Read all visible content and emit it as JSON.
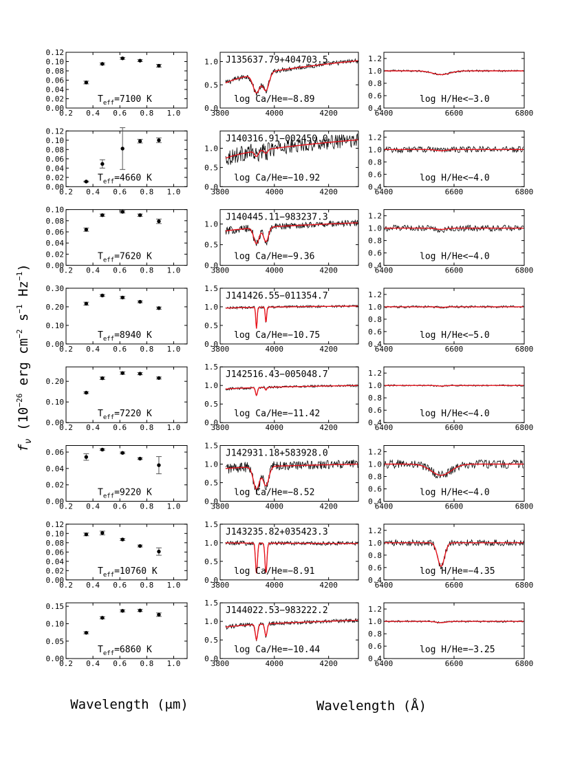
{
  "figure": {
    "ylabel_parts": {
      "f": "f",
      "nu": "ν",
      "open": " (10",
      "e1": "−26",
      "erg": " erg cm",
      "e2": "−2",
      "s": " s",
      "e3": "−1",
      "hz": " Hz",
      "e4": "−1",
      "close": ")"
    },
    "xlabel_photometry": "Wavelength (μm)",
    "xlabel_spectra": "Wavelength (Å)"
  },
  "colors": {
    "model": "#e8131c",
    "data": "#000000",
    "axes": "#000000"
  },
  "chart_data": [
    {
      "type": "scatter",
      "panel": "photometry",
      "xlim": [
        0.2,
        1.1
      ],
      "xticks": [
        "0.2",
        "0.4",
        "0.6",
        "0.8",
        "1.0"
      ],
      "series": [
        {
          "name": "T_eff=7100 K"
        }
      ],
      "annotation": "T_eff=7100 K",
      "rows": [
        {
          "teff_label": "7100 K",
          "ylim": [
            0,
            0.12
          ],
          "yticks": [
            "0.00",
            "0.02",
            "0.04",
            "0.06",
            "0.08",
            "0.10",
            "0.12"
          ],
          "points": [
            {
              "x": 0.35,
              "y": 0.055,
              "err": 0.003
            },
            {
              "x": 0.47,
              "y": 0.095,
              "err": 0.002
            },
            {
              "x": 0.62,
              "y": 0.107,
              "err": 0.002
            },
            {
              "x": 0.75,
              "y": 0.102,
              "err": 0.002
            },
            {
              "x": 0.89,
              "y": 0.091,
              "err": 0.003
            }
          ]
        },
        {
          "teff_label": "4660 K",
          "ylim": [
            0,
            0.12
          ],
          "yticks": [
            "0.00",
            "0.02",
            "0.04",
            "0.06",
            "0.08",
            "0.10",
            "0.12"
          ],
          "points": [
            {
              "x": 0.35,
              "y": 0.011,
              "err": 0.001
            },
            {
              "x": 0.47,
              "y": 0.049,
              "err": 0.009
            },
            {
              "x": 0.62,
              "y": 0.082,
              "err": 0.045
            },
            {
              "x": 0.75,
              "y": 0.098,
              "err": 0.004
            },
            {
              "x": 0.89,
              "y": 0.1,
              "err": 0.005
            }
          ]
        },
        {
          "teff_label": "7620 K",
          "ylim": [
            0,
            0.1
          ],
          "yticks": [
            "0.00",
            "0.02",
            "0.04",
            "0.06",
            "0.08",
            "0.10"
          ],
          "points": [
            {
              "x": 0.35,
              "y": 0.064,
              "err": 0.003
            },
            {
              "x": 0.47,
              "y": 0.09,
              "err": 0.002
            },
            {
              "x": 0.62,
              "y": 0.096,
              "err": 0.002
            },
            {
              "x": 0.75,
              "y": 0.09,
              "err": 0.002
            },
            {
              "x": 0.89,
              "y": 0.079,
              "err": 0.004
            }
          ]
        },
        {
          "teff_label": "8940 K",
          "ylim": [
            0,
            0.3
          ],
          "yticks": [
            "0.00",
            "0.10",
            "0.20",
            "0.30"
          ],
          "points": [
            {
              "x": 0.35,
              "y": 0.217,
              "err": 0.008
            },
            {
              "x": 0.47,
              "y": 0.261,
              "err": 0.005
            },
            {
              "x": 0.62,
              "y": 0.25,
              "err": 0.006
            },
            {
              "x": 0.75,
              "y": 0.227,
              "err": 0.005
            },
            {
              "x": 0.89,
              "y": 0.193,
              "err": 0.006
            }
          ]
        },
        {
          "teff_label": "7220 K",
          "ylim": [
            0,
            0.27
          ],
          "yticks": [
            "0.00",
            "0.10",
            "0.20"
          ],
          "points": [
            {
              "x": 0.35,
              "y": 0.145,
              "err": 0.004
            },
            {
              "x": 0.47,
              "y": 0.215,
              "err": 0.006
            },
            {
              "x": 0.62,
              "y": 0.24,
              "err": 0.006
            },
            {
              "x": 0.75,
              "y": 0.237,
              "err": 0.005
            },
            {
              "x": 0.89,
              "y": 0.216,
              "err": 0.005
            }
          ]
        },
        {
          "teff_label": "9220 K",
          "ylim": [
            0,
            0.068
          ],
          "yticks": [
            "0.00",
            "0.02",
            "0.04",
            "0.06"
          ],
          "points": [
            {
              "x": 0.35,
              "y": 0.054,
              "err": 0.004
            },
            {
              "x": 0.47,
              "y": 0.063,
              "err": 0.001
            },
            {
              "x": 0.62,
              "y": 0.059,
              "err": 0.001
            },
            {
              "x": 0.75,
              "y": 0.052,
              "err": 0.001
            },
            {
              "x": 0.89,
              "y": 0.044,
              "err": 0.0105
            }
          ]
        },
        {
          "teff_label": "10760 K",
          "ylim": [
            0,
            0.12
          ],
          "yticks": [
            "0.00",
            "0.02",
            "0.04",
            "0.06",
            "0.08",
            "0.10",
            "0.12"
          ],
          "points": [
            {
              "x": 0.35,
              "y": 0.098,
              "err": 0.003
            },
            {
              "x": 0.47,
              "y": 0.101,
              "err": 0.004
            },
            {
              "x": 0.62,
              "y": 0.087,
              "err": 0.002
            },
            {
              "x": 0.75,
              "y": 0.073,
              "err": 0.002
            },
            {
              "x": 0.89,
              "y": 0.061,
              "err": 0.008
            }
          ]
        },
        {
          "teff_label": "6860 K",
          "ylim": [
            0,
            0.16
          ],
          "yticks": [
            "0.00",
            "0.05",
            "0.10",
            "0.15"
          ],
          "points": [
            {
              "x": 0.35,
              "y": 0.074,
              "err": 0.003
            },
            {
              "x": 0.47,
              "y": 0.117,
              "err": 0.003
            },
            {
              "x": 0.62,
              "y": 0.137,
              "err": 0.003
            },
            {
              "x": 0.75,
              "y": 0.138,
              "err": 0.003
            },
            {
              "x": 0.89,
              "y": 0.126,
              "err": 0.005
            }
          ]
        }
      ]
    },
    {
      "type": "line",
      "panel": "CaHK",
      "xlim": [
        3800,
        4310
      ],
      "xticks": [
        "3800",
        "4000",
        "4200"
      ],
      "rows": [
        {
          "name": "J135637.79+404703.5",
          "abund": "log Ca/He=−8.89",
          "ylim": [
            0,
            1.2
          ],
          "yticks": [
            "0.0",
            "0.5",
            "1.0"
          ],
          "depthK": 0.55,
          "depthH": 0.5,
          "widthK": 18,
          "widthH": 16,
          "noise": 0.05,
          "start": 0.42,
          "end": 1.02
        },
        {
          "name": "J140316.91−002450.0",
          "abund": "log Ca/He=−10.92",
          "ylim": [
            0,
            1.45
          ],
          "yticks": [
            "0.0",
            "0.5",
            "1.0"
          ],
          "depthK": 0.15,
          "depthH": 0.1,
          "widthK": 10,
          "widthH": 9,
          "noise": 0.18,
          "start": 0.62,
          "end": 1.22
        },
        {
          "name": "J140445.11−983237.3",
          "abund": "log Ca/He=−9.36",
          "ylim": [
            0,
            1.35
          ],
          "yticks": [
            "0.0",
            "0.5",
            "1.0"
          ],
          "depthK": 0.42,
          "depthH": 0.38,
          "widthK": 14,
          "widthH": 13,
          "noise": 0.08,
          "start": 0.78,
          "end": 1.03
        },
        {
          "name": "J141426.55−011354.7",
          "abund": "log Ca/He=−10.75",
          "ylim": [
            0,
            1.5
          ],
          "yticks": [
            "0.0",
            "0.5",
            "1.0",
            "1.5"
          ],
          "depthK": 0.58,
          "depthH": 0.42,
          "widthK": 3.5,
          "widthH": 3.5,
          "noise": 0.03,
          "start": 0.95,
          "end": 1.02
        },
        {
          "name": "J142516.43−005048.7",
          "abund": "log Ca/He=−11.42",
          "ylim": [
            0,
            1.5
          ],
          "yticks": [
            "0.0",
            "0.5",
            "1.0",
            "1.5"
          ],
          "depthK": 0.22,
          "depthH": 0.08,
          "widthK": 5,
          "widthH": 4,
          "noise": 0.03,
          "start": 0.88,
          "end": 1.0
        },
        {
          "name": "J142931.18+583928.0",
          "abund": "log Ca/He=−8.52",
          "ylim": [
            0,
            1.5
          ],
          "yticks": [
            "0.0",
            "0.5",
            "1.0",
            "1.5"
          ],
          "depthK": 0.65,
          "depthH": 0.55,
          "widthK": 16,
          "widthH": 15,
          "noise": 0.12,
          "start": 0.85,
          "end": 1.0
        },
        {
          "name": "J143235.82+035423.3",
          "abund": "log Ca/He=−8.91",
          "ylim": [
            0,
            1.5
          ],
          "yticks": [
            "0.0",
            "0.5",
            "1.0",
            "1.5"
          ],
          "depthK": 0.82,
          "depthH": 0.82,
          "widthK": 5,
          "widthH": 5,
          "noise": 0.05,
          "start": 1.0,
          "end": 0.98
        },
        {
          "name": "J144022.53−983222.2",
          "abund": "log Ca/He=−10.44",
          "ylim": [
            0,
            1.5
          ],
          "yticks": [
            "0.0",
            "0.5",
            "1.0",
            "1.5"
          ],
          "depthK": 0.45,
          "depthH": 0.35,
          "widthK": 6,
          "widthH": 6,
          "noise": 0.05,
          "start": 0.8,
          "end": 1.03
        }
      ]
    },
    {
      "type": "line",
      "panel": "Halpha",
      "xlim": [
        6400,
        6800
      ],
      "xticks": [
        "6400",
        "6600",
        "6800"
      ],
      "rows": [
        {
          "abund": "log H/He<−3.0",
          "ylim": [
            0.4,
            1.3
          ],
          "yticks": [
            "0.4",
            "0.6",
            "0.8",
            "1.0",
            "1.2"
          ],
          "depth": 0.06,
          "width": 35,
          "noise": 0.015
        },
        {
          "abund": "log H/He<−4.0",
          "ylim": [
            0.4,
            1.3
          ],
          "yticks": [
            "0.4",
            "0.6",
            "0.8",
            "1.0",
            "1.2"
          ],
          "depth": 0.02,
          "width": 20,
          "noise": 0.05
        },
        {
          "abund": "log H/He<−4.0",
          "ylim": [
            0.4,
            1.3
          ],
          "yticks": [
            "0.4",
            "0.6",
            "0.8",
            "1.0",
            "1.2"
          ],
          "depth": 0.02,
          "width": 20,
          "noise": 0.05
        },
        {
          "abund": "log H/He<−5.0",
          "ylim": [
            0.4,
            1.3
          ],
          "yticks": [
            "0.4",
            "0.6",
            "0.8",
            "1.0",
            "1.2"
          ],
          "depth": 0.01,
          "width": 15,
          "noise": 0.018
        },
        {
          "abund": "log H/He<−4.0",
          "ylim": [
            0.4,
            1.3
          ],
          "yticks": [
            "0.4",
            "0.6",
            "0.8",
            "1.0",
            "1.2"
          ],
          "depth": 0.01,
          "width": 15,
          "noise": 0.012
        },
        {
          "abund": "log H/He<−4.0",
          "ylim": [
            0.4,
            1.3
          ],
          "yticks": [
            "0.4",
            "0.6",
            "0.8",
            "1.0",
            "1.2"
          ],
          "depth": 0.18,
          "width": 40,
          "noise": 0.07
        },
        {
          "abund": "log H/He=−4.35",
          "ylim": [
            0.4,
            1.3
          ],
          "yticks": [
            "0.4",
            "0.6",
            "0.8",
            "1.0",
            "1.2"
          ],
          "depth": 0.38,
          "width": 14,
          "noise": 0.05
        },
        {
          "abund": "log H/He=−3.25",
          "ylim": [
            0.4,
            1.3
          ],
          "yticks": [
            "0.4",
            "0.6",
            "0.8",
            "1.0",
            "1.2"
          ],
          "depth": 0.02,
          "width": 20,
          "noise": 0.015
        }
      ]
    }
  ]
}
